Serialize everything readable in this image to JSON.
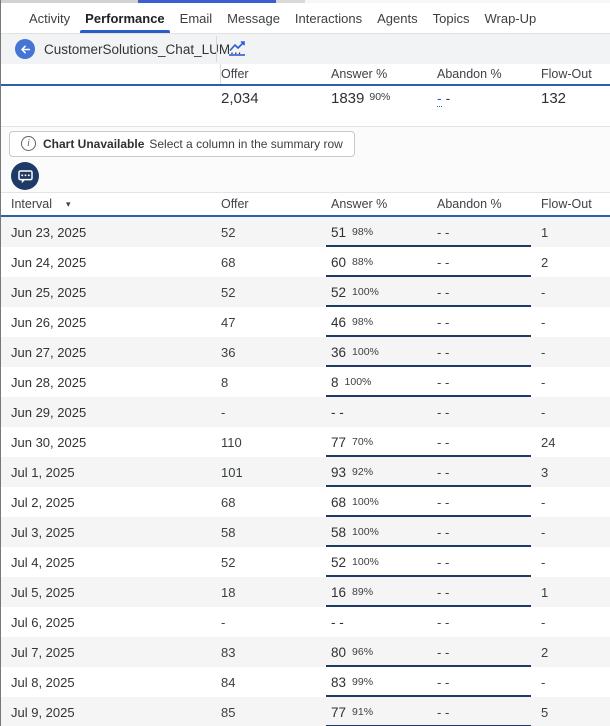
{
  "nav": {
    "tabs": [
      {
        "label": "Activity",
        "active": false
      },
      {
        "label": "Performance",
        "active": true
      },
      {
        "label": "Email",
        "active": false
      },
      {
        "label": "Message",
        "active": false
      },
      {
        "label": "Interactions",
        "active": false
      },
      {
        "label": "Agents",
        "active": false
      },
      {
        "label": "Topics",
        "active": false
      },
      {
        "label": "Wrap-Up",
        "active": false
      }
    ]
  },
  "toolbar": {
    "queue_title": "CustomerSolutions_Chat_LUM...",
    "back_icon": "arrow-left-icon",
    "chart_icon": "line-chart-icon"
  },
  "summary": {
    "columns": [
      "Offer",
      "Answer %",
      "Abandon %",
      "Flow-Out"
    ],
    "row": {
      "offer": "2,034",
      "answer": "1839",
      "answer_pct": "90%",
      "abandon_dash1": "-",
      "abandon_dash2": "-",
      "flow_out": "132"
    }
  },
  "notice": {
    "title": "Chart Unavailable",
    "text": "Select a column in the summary row"
  },
  "table": {
    "interval_label": "Interval",
    "sort_caret": "▾",
    "columns": [
      "Offer",
      "Answer %",
      "Abandon %",
      "Flow-Out"
    ],
    "rows": [
      {
        "interval": "Jun 23, 2025",
        "offer": "52",
        "answer": "51",
        "answer_pct": "98%",
        "abandon": "- -",
        "flow_out": "1",
        "bar": true
      },
      {
        "interval": "Jun 24, 2025",
        "offer": "68",
        "answer": "60",
        "answer_pct": "88%",
        "abandon": "- -",
        "flow_out": "2",
        "bar": true
      },
      {
        "interval": "Jun 25, 2025",
        "offer": "52",
        "answer": "52",
        "answer_pct": "100%",
        "abandon": "- -",
        "flow_out": "-",
        "bar": true
      },
      {
        "interval": "Jun 26, 2025",
        "offer": "47",
        "answer": "46",
        "answer_pct": "98%",
        "abandon": "- -",
        "flow_out": "-",
        "bar": true
      },
      {
        "interval": "Jun 27, 2025",
        "offer": "36",
        "answer": "36",
        "answer_pct": "100%",
        "abandon": "- -",
        "flow_out": "-",
        "bar": true
      },
      {
        "interval": "Jun 28, 2025",
        "offer": "8",
        "answer": "8",
        "answer_pct": "100%",
        "abandon": "- -",
        "flow_out": "-",
        "bar": true
      },
      {
        "interval": "Jun 29, 2025",
        "offer": "-",
        "answer": "- -",
        "answer_pct": "",
        "abandon": "- -",
        "flow_out": "-",
        "bar": false
      },
      {
        "interval": "Jun 30, 2025",
        "offer": "110",
        "answer": "77",
        "answer_pct": "70%",
        "abandon": "- -",
        "flow_out": "24",
        "bar": true
      },
      {
        "interval": "Jul 1, 2025",
        "offer": "101",
        "answer": "93",
        "answer_pct": "92%",
        "abandon": "- -",
        "flow_out": "3",
        "bar": true
      },
      {
        "interval": "Jul 2, 2025",
        "offer": "68",
        "answer": "68",
        "answer_pct": "100%",
        "abandon": "- -",
        "flow_out": "-",
        "bar": true
      },
      {
        "interval": "Jul 3, 2025",
        "offer": "58",
        "answer": "58",
        "answer_pct": "100%",
        "abandon": "- -",
        "flow_out": "-",
        "bar": true
      },
      {
        "interval": "Jul 4, 2025",
        "offer": "52",
        "answer": "52",
        "answer_pct": "100%",
        "abandon": "- -",
        "flow_out": "-",
        "bar": true
      },
      {
        "interval": "Jul 5, 2025",
        "offer": "18",
        "answer": "16",
        "answer_pct": "89%",
        "abandon": "- -",
        "flow_out": "1",
        "bar": true
      },
      {
        "interval": "Jul 6, 2025",
        "offer": "-",
        "answer": "- -",
        "answer_pct": "",
        "abandon": "- -",
        "flow_out": "-",
        "bar": false
      },
      {
        "interval": "Jul 7, 2025",
        "offer": "83",
        "answer": "80",
        "answer_pct": "96%",
        "abandon": "- -",
        "flow_out": "2",
        "bar": true
      },
      {
        "interval": "Jul 8, 2025",
        "offer": "84",
        "answer": "83",
        "answer_pct": "99%",
        "abandon": "- -",
        "flow_out": "-",
        "bar": true
      },
      {
        "interval": "Jul 9, 2025",
        "offer": "85",
        "answer": "77",
        "answer_pct": "91%",
        "abandon": "- -",
        "flow_out": "5",
        "bar": true
      }
    ]
  },
  "colors": {
    "accent_blue": "#2b5bc7",
    "header_rule_blue": "#2f5fa6",
    "back_button_blue": "#4474d4",
    "navy_bar": "#1e3a67",
    "row_shade": "#f5f5f6",
    "link_blue": "#2b5bd7"
  }
}
